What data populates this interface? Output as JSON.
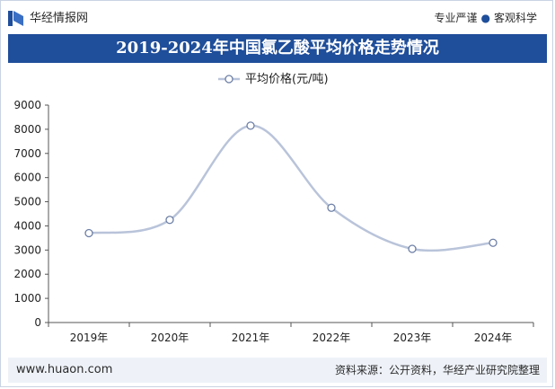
{
  "header": {
    "brand": "华经情报网",
    "slogan_left": "专业严谨",
    "slogan_right": "客观科学",
    "slogan_separator": "●"
  },
  "colors": {
    "title_bar": "#1f4e9a",
    "line": "#b9c4da",
    "marker_fill": "#ffffff",
    "marker_stroke": "#6d7fa6",
    "axis": "#555555"
  },
  "footer": {
    "url": "www.huaon.com",
    "source": "资料来源：公开资料，华经产业研究院整理"
  },
  "chart_data": {
    "type": "line",
    "title": "2019-2024年中国氯乙酸平均价格走势情况",
    "categories": [
      "2019年",
      "2020年",
      "2021年",
      "2022年",
      "2023年",
      "2024年"
    ],
    "series": [
      {
        "name": "平均价格(元/吨)",
        "values": [
          3700,
          4250,
          8150,
          4750,
          3050,
          3300
        ]
      }
    ],
    "ylim": [
      0,
      9000
    ],
    "yticks": [
      0,
      1000,
      2000,
      3000,
      4000,
      5000,
      6000,
      7000,
      8000,
      9000
    ],
    "grid": false,
    "legend": "top-center",
    "smooth": true
  }
}
